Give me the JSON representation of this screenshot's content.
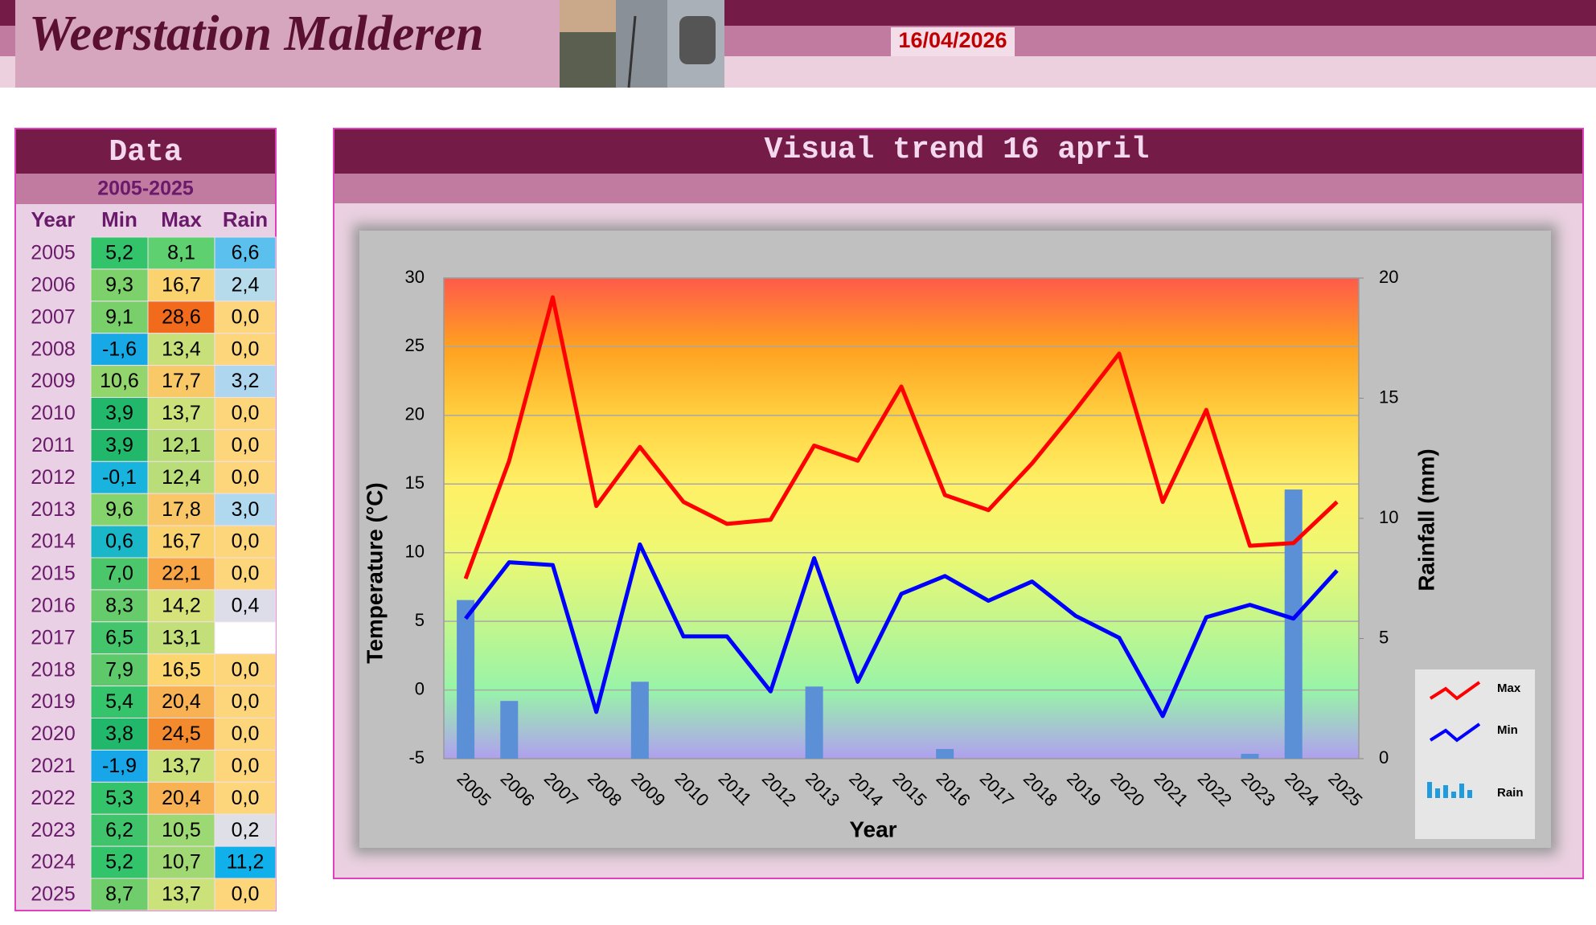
{
  "header": {
    "title": "Weerstation Malderen",
    "date": "16/04/2026"
  },
  "table": {
    "title": "Data",
    "subtitle": "2005-2025",
    "columns": [
      "Year",
      "Min",
      "Max",
      "Rain"
    ],
    "rows": [
      [
        "2005",
        "5,2",
        "8,1",
        "6,6"
      ],
      [
        "2006",
        "9,3",
        "16,7",
        "2,4"
      ],
      [
        "2007",
        "9,1",
        "28,6",
        "0,0"
      ],
      [
        "2008",
        "-1,6",
        "13,4",
        "0,0"
      ],
      [
        "2009",
        "10,6",
        "17,7",
        "3,2"
      ],
      [
        "2010",
        "3,9",
        "13,7",
        "0,0"
      ],
      [
        "2011",
        "3,9",
        "12,1",
        "0,0"
      ],
      [
        "2012",
        "-0,1",
        "12,4",
        "0,0"
      ],
      [
        "2013",
        "9,6",
        "17,8",
        "3,0"
      ],
      [
        "2014",
        "0,6",
        "16,7",
        "0,0"
      ],
      [
        "2015",
        "7,0",
        "22,1",
        "0,0"
      ],
      [
        "2016",
        "8,3",
        "14,2",
        "0,4"
      ],
      [
        "2017",
        "6,5",
        "13,1",
        null
      ],
      [
        "2018",
        "7,9",
        "16,5",
        "0,0"
      ],
      [
        "2019",
        "5,4",
        "20,4",
        "0,0"
      ],
      [
        "2020",
        "3,8",
        "24,5",
        "0,0"
      ],
      [
        "2021",
        "-1,9",
        "13,7",
        "0,0"
      ],
      [
        "2022",
        "5,3",
        "20,4",
        "0,0"
      ],
      [
        "2023",
        "6,2",
        "10,5",
        "0,2"
      ],
      [
        "2024",
        "5,2",
        "10,7",
        "11,2"
      ],
      [
        "2025",
        "8,7",
        "13,7",
        "0,0"
      ]
    ],
    "cell_colors": [
      [
        "#33c36b",
        "#5fd070",
        "#5bc0ee"
      ],
      [
        "#7cd16b",
        "#fbd36e",
        "#b6dcec"
      ],
      [
        "#79d06b",
        "#f26a1b",
        "#fdd57a"
      ],
      [
        "#17a9e6",
        "#c8e07a",
        "#fdd57a"
      ],
      [
        "#92d56d",
        "#f9c867",
        "#aed6ee"
      ],
      [
        "#22b86b",
        "#cbe17a",
        "#fdd57a"
      ],
      [
        "#22b86b",
        "#b5dc77",
        "#fdd57a"
      ],
      [
        "#18b4de",
        "#b9dd78",
        "#fdd57a"
      ],
      [
        "#85d36c",
        "#f9c767",
        "#b0d8ee"
      ],
      [
        "#1ab7c8",
        "#fbd36e",
        "#fdd57a"
      ],
      [
        "#4cc66b",
        "#f7a545",
        "#fdd57a"
      ],
      [
        "#66cb6b",
        "#d6e37b",
        "#dcdde8"
      ],
      [
        "#44c46b",
        "#c3df79",
        "#ffffff"
      ],
      [
        "#5ec96b",
        "#fcd56f",
        "#fdd57a"
      ],
      [
        "#35c36b",
        "#f8b153",
        "#fdd57a"
      ],
      [
        "#22b86b",
        "#f48a2e",
        "#fdd57a"
      ],
      [
        "#17a6e8",
        "#cbe17a",
        "#fdd57a"
      ],
      [
        "#34c36b",
        "#f8b153",
        "#fdd57a"
      ],
      [
        "#40c46b",
        "#9cd874",
        "#dfdfe8"
      ],
      [
        "#33c36b",
        "#a0d874",
        "#10b0ea"
      ],
      [
        "#6fce6b",
        "#cbe17a",
        "#fdd57a"
      ]
    ]
  },
  "chart_data": {
    "type": "line",
    "title": "Visual trend 16 april",
    "x_label": "Year",
    "y_label": "Temperature (°C)",
    "y2_label": "Rainfall (mm)",
    "categories": [
      "2005",
      "2006",
      "2007",
      "2008",
      "2009",
      "2010",
      "2011",
      "2012",
      "2013",
      "2014",
      "2015",
      "2016",
      "2017",
      "2018",
      "2019",
      "2020",
      "2021",
      "2022",
      "2023",
      "2024",
      "2025"
    ],
    "series": [
      {
        "name": "Max",
        "color": "#ff0000",
        "values": [
          8.1,
          16.7,
          28.6,
          13.4,
          17.7,
          13.7,
          12.1,
          12.4,
          17.8,
          16.7,
          22.1,
          14.2,
          13.1,
          16.5,
          20.4,
          24.5,
          13.7,
          20.4,
          10.5,
          10.7,
          13.7
        ]
      },
      {
        "name": "Min",
        "color": "#0000ff",
        "values": [
          5.2,
          9.3,
          9.1,
          -1.6,
          10.6,
          3.9,
          3.9,
          -0.1,
          9.6,
          0.6,
          7.0,
          8.3,
          6.5,
          7.9,
          5.4,
          3.8,
          -1.9,
          5.3,
          6.2,
          5.2,
          8.7
        ]
      },
      {
        "name": "Rain",
        "type": "bar",
        "axis": "y2",
        "color": "#5b8fd6",
        "values": [
          6.6,
          2.4,
          0,
          0,
          3.2,
          0,
          0,
          0,
          3.0,
          0,
          0,
          0.4,
          null,
          0,
          0,
          0,
          0,
          0,
          0.2,
          11.2,
          0
        ]
      }
    ],
    "ylim": [
      -5,
      30
    ],
    "yticks": [
      -5,
      0,
      5,
      10,
      15,
      20,
      25,
      30
    ],
    "y2lim": [
      0,
      20
    ],
    "y2ticks": [
      0,
      5,
      10,
      15,
      20
    ],
    "grid": true,
    "legend": "right"
  }
}
